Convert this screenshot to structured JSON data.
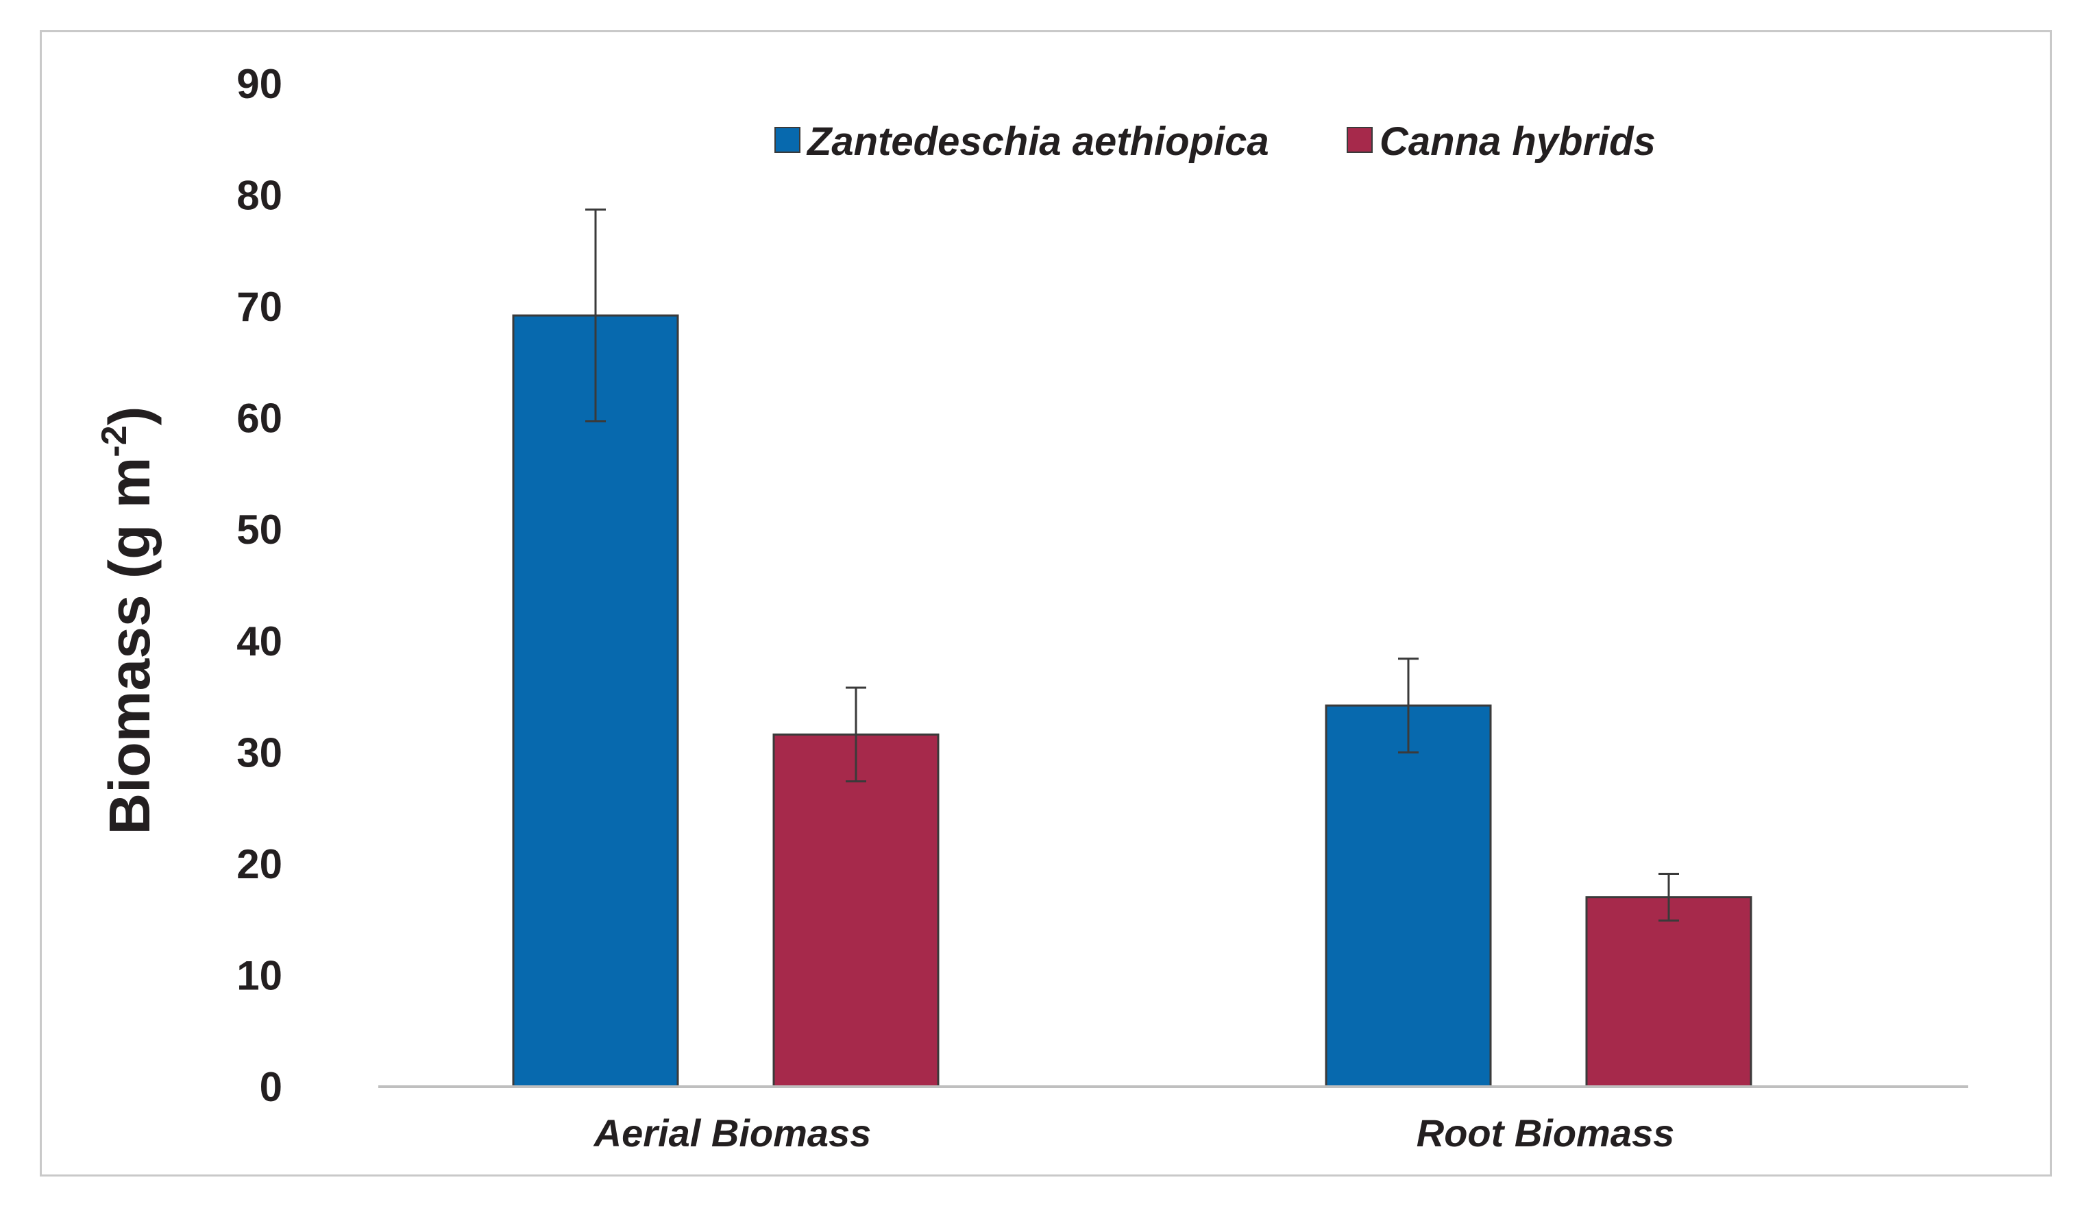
{
  "chart_data": {
    "type": "bar",
    "title": "",
    "xlabel": "",
    "ylabel": "Biomass (g m",
    "ylabel_superscript": "-2",
    "ylabel_close": ")",
    "ylim": [
      0,
      90
    ],
    "yticks": [
      0,
      10,
      20,
      30,
      40,
      50,
      60,
      70,
      80,
      90
    ],
    "ytick_labels": [
      "0",
      "10",
      "20",
      "30",
      "40",
      "50",
      "60",
      "70",
      "80",
      "90"
    ],
    "categories": [
      "Aerial Biomass",
      "Root Biomass"
    ],
    "series": [
      {
        "name": "Zantedeschia aethiopica",
        "color": "#0769ae",
        "values": [
          69.2,
          34.2
        ],
        "errors": [
          9.5,
          4.2
        ]
      },
      {
        "name": "Canna hybrids",
        "color": "#a6294b",
        "values": [
          31.6,
          17.0
        ],
        "errors": [
          4.2,
          2.1
        ]
      }
    ],
    "legend_position": "top",
    "grid": false
  }
}
